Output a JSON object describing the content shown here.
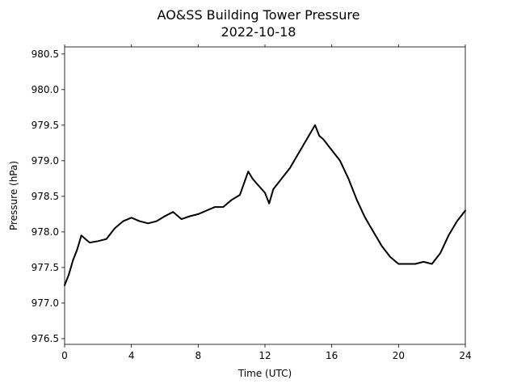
{
  "chart_data": {
    "type": "line",
    "title": "AO&SS Building Tower Pressure",
    "subtitle": "2022-10-18",
    "xlabel": "Time (UTC)",
    "ylabel": "Pressure (hPa)",
    "xlim": [
      0,
      24
    ],
    "ylim": [
      976.42,
      980.6
    ],
    "xticks": [
      0,
      4,
      8,
      12,
      16,
      20,
      24
    ],
    "yticks": [
      976.5,
      977.0,
      977.5,
      978.0,
      978.5,
      979.0,
      979.5,
      980.0,
      980.5
    ],
    "ytick_labels": [
      "976.5",
      "977.0",
      "977.5",
      "978.0",
      "978.5",
      "979.0",
      "979.5",
      "980.0",
      "980.5"
    ],
    "grid": false,
    "line_color": "#000000",
    "series": [
      {
        "x": [
          0,
          0.25,
          0.5,
          0.75,
          1.0,
          1.25,
          1.5,
          2.0,
          2.5,
          3.0,
          3.5,
          4.0,
          4.5,
          5.0,
          5.5,
          6.0,
          6.5,
          7.0,
          7.5,
          8.0,
          8.5,
          9.0,
          9.5,
          10.0,
          10.5,
          11.0,
          11.25,
          11.5,
          12.0,
          12.25,
          12.5,
          13.0,
          13.5,
          14.0,
          14.5,
          15.0,
          15.25,
          15.5,
          16.0,
          16.5,
          17.0,
          17.5,
          18.0,
          18.5,
          19.0,
          19.5,
          20.0,
          20.5,
          21.0,
          21.5,
          22.0,
          22.5,
          23.0,
          23.5,
          24.0
        ],
        "y": [
          977.25,
          977.4,
          977.6,
          977.75,
          977.95,
          977.9,
          977.85,
          977.87,
          977.9,
          978.05,
          978.15,
          978.2,
          978.15,
          978.12,
          978.15,
          978.22,
          978.28,
          978.18,
          978.22,
          978.25,
          978.3,
          978.35,
          978.35,
          978.45,
          978.52,
          978.85,
          978.75,
          978.68,
          978.55,
          978.4,
          978.6,
          978.75,
          978.9,
          979.1,
          979.3,
          979.5,
          979.35,
          979.3,
          979.15,
          979.0,
          978.75,
          978.45,
          978.2,
          978.0,
          977.8,
          977.65,
          977.55,
          977.55,
          977.55,
          977.58,
          977.55,
          977.7,
          977.95,
          978.15,
          978.3
        ]
      }
    ]
  }
}
